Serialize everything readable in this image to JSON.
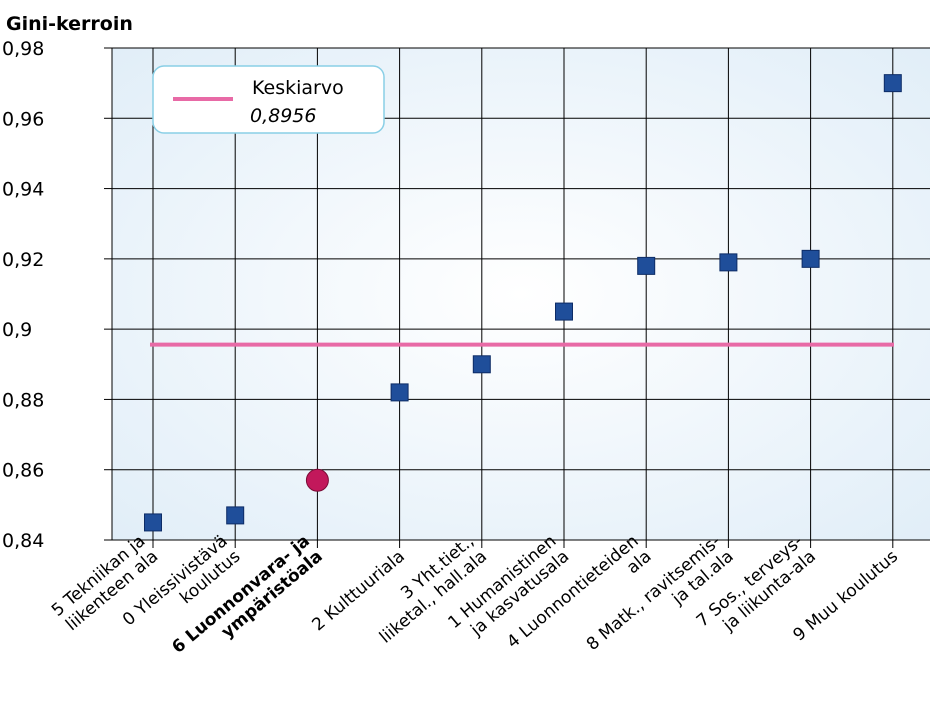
{
  "chart_data": {
    "type": "scatter",
    "ylabel": "Gini-kerroin",
    "ylim": [
      0.84,
      0.98
    ],
    "yticks": [
      0.84,
      0.86,
      0.88,
      0.9,
      0.92,
      0.94,
      0.96,
      0.98
    ],
    "ytick_labels": [
      "0,84",
      "0,86",
      "0,88",
      "0,9",
      "0,92",
      "0,94",
      "0,96",
      "0,98"
    ],
    "categories": [
      [
        "5 Tekniikan ja",
        "liikenteen ala"
      ],
      [
        "0 Yleissivistävä",
        "koulutus"
      ],
      [
        "6 Luonnonvara- ja",
        "ympäristöala"
      ],
      [
        "2 Kulttuuriala"
      ],
      [
        "3 Yht.tiet.,",
        "liiketal., hall.ala"
      ],
      [
        "1 Humanistinen",
        "ja kasvatusala"
      ],
      [
        "4 Luonnontieteiden",
        "ala"
      ],
      [
        "8 Matk., ravitsemis-",
        "ja tal.ala"
      ],
      [
        "7 Sos., terveys-",
        "ja liikunta-ala"
      ],
      [
        "9 Muu koulutus"
      ]
    ],
    "highlight_index": 2,
    "values": [
      0.845,
      0.847,
      0.857,
      0.882,
      0.89,
      0.905,
      0.918,
      0.919,
      0.92,
      0.97
    ],
    "mean": {
      "name": "Keskiarvo",
      "value": 0.8956,
      "value_label": "0,8956"
    },
    "grid": true,
    "legend": "top-left",
    "colors": {
      "marker": "#1f4e9a",
      "marker_edge": "#0d2c66",
      "highlight": "#c2185b",
      "highlight_edge": "#7a0b36",
      "mean_line": "#e86aa6",
      "legend_border": "#89cfe6"
    }
  }
}
